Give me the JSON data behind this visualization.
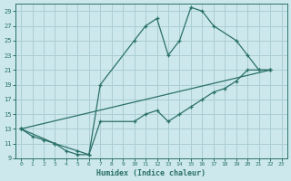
{
  "xlabel": "Humidex (Indice chaleur)",
  "bg_color": "#cce8ec",
  "grid_color": "#aacdd4",
  "line_color": "#2a7068",
  "xlim": [
    -0.5,
    23.5
  ],
  "ylim": [
    9,
    30
  ],
  "xticks": [
    0,
    1,
    2,
    3,
    4,
    5,
    6,
    7,
    8,
    9,
    10,
    11,
    12,
    13,
    14,
    15,
    16,
    17,
    18,
    19,
    20,
    21,
    22,
    23
  ],
  "yticks": [
    9,
    11,
    13,
    15,
    17,
    19,
    21,
    23,
    25,
    27,
    29
  ],
  "line1_x": [
    0,
    1,
    2,
    3,
    4,
    5,
    6,
    7,
    10,
    11,
    12,
    13,
    14,
    15,
    16,
    17,
    19,
    20,
    21,
    22
  ],
  "line1_y": [
    13,
    12,
    11.5,
    11,
    10,
    9.5,
    9.5,
    19,
    25,
    27,
    28,
    23,
    25,
    29.5,
    29,
    27,
    25,
    23,
    21,
    21
  ],
  "line2_x": [
    0,
    3,
    5,
    6,
    7,
    10,
    11,
    12,
    13,
    14,
    15,
    16,
    17,
    18,
    19,
    20,
    21,
    22
  ],
  "line2_y": [
    13,
    11,
    10,
    9.5,
    14,
    14,
    15,
    15.5,
    14,
    15,
    16,
    17,
    18,
    18.5,
    19.5,
    21,
    21,
    21
  ],
  "line3_x": [
    0,
    22
  ],
  "line3_y": [
    13,
    21
  ]
}
